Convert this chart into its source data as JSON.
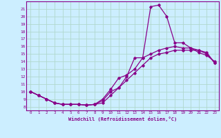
{
  "xlabel": "Windchill (Refroidissement éolien,°C)",
  "bg_color": "#cceeff",
  "grid_color": "#b0d8cc",
  "line_color": "#880088",
  "xlim": [
    -0.5,
    23.5
  ],
  "ylim": [
    7.5,
    22
  ],
  "yticks": [
    8,
    9,
    10,
    11,
    12,
    13,
    14,
    15,
    16,
    17,
    18,
    19,
    20,
    21
  ],
  "xticks": [
    0,
    1,
    2,
    3,
    4,
    5,
    6,
    7,
    8,
    9,
    10,
    11,
    12,
    13,
    14,
    15,
    16,
    17,
    18,
    19,
    20,
    21,
    22,
    23
  ],
  "line1_x": [
    0,
    1,
    2,
    3,
    4,
    5,
    6,
    7,
    8,
    9,
    10,
    11,
    12,
    13,
    14,
    15,
    16,
    17,
    18,
    19,
    20,
    21,
    22,
    23
  ],
  "line1_y": [
    10.0,
    9.5,
    9.0,
    8.5,
    8.3,
    8.3,
    8.3,
    8.2,
    8.3,
    8.5,
    9.5,
    10.5,
    12.0,
    14.5,
    14.5,
    21.3,
    21.5,
    20.0,
    16.5,
    16.5,
    15.8,
    15.2,
    14.8,
    14.0
  ],
  "line2_x": [
    0,
    1,
    2,
    3,
    4,
    5,
    6,
    7,
    8,
    9,
    10,
    11,
    12,
    13,
    14,
    15,
    16,
    17,
    18,
    19,
    20,
    21,
    22,
    23
  ],
  "line2_y": [
    10.0,
    9.5,
    9.0,
    8.5,
    8.3,
    8.3,
    8.3,
    8.2,
    8.3,
    9.0,
    10.3,
    11.8,
    12.2,
    13.0,
    14.5,
    15.0,
    15.5,
    15.8,
    16.0,
    15.8,
    15.8,
    15.5,
    15.2,
    13.8
  ],
  "line3_x": [
    0,
    1,
    2,
    3,
    4,
    5,
    6,
    7,
    8,
    9,
    10,
    11,
    12,
    13,
    14,
    15,
    16,
    17,
    18,
    19,
    20,
    21,
    22,
    23
  ],
  "line3_y": [
    10.0,
    9.5,
    9.0,
    8.5,
    8.3,
    8.3,
    8.3,
    8.2,
    8.3,
    8.8,
    10.0,
    10.5,
    11.5,
    12.5,
    13.5,
    14.5,
    15.0,
    15.2,
    15.5,
    15.5,
    15.5,
    15.5,
    15.0,
    13.8
  ]
}
